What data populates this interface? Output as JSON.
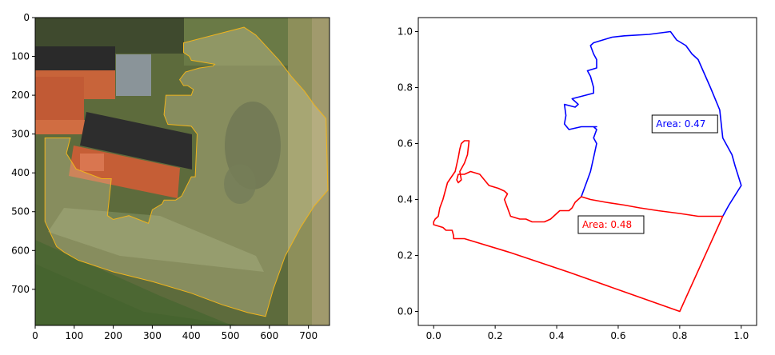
{
  "chart_data": [
    {
      "type": "image-with-polygon-overlay",
      "title": "",
      "xlabel": "",
      "ylabel": "",
      "xlim": [
        0,
        754
      ],
      "ylim": [
        793,
        0
      ],
      "x_ticks": [
        0,
        100,
        200,
        300,
        400,
        500,
        600,
        700
      ],
      "y_ticks": [
        0,
        100,
        200,
        300,
        400,
        500,
        600,
        700
      ],
      "overlay_color": "#f0b41c",
      "outline": [
        [
          380,
          65
        ],
        [
          535,
          25
        ],
        [
          565,
          45
        ],
        [
          625,
          110
        ],
        [
          655,
          150
        ],
        [
          690,
          190
        ],
        [
          715,
          225
        ],
        [
          745,
          260
        ],
        [
          750,
          445
        ],
        [
          715,
          485
        ],
        [
          680,
          540
        ],
        [
          640,
          615
        ],
        [
          610,
          700
        ],
        [
          590,
          770
        ],
        [
          545,
          760
        ],
        [
          480,
          740
        ],
        [
          400,
          710
        ],
        [
          300,
          680
        ],
        [
          200,
          655
        ],
        [
          110,
          625
        ],
        [
          75,
          605
        ],
        [
          55,
          590
        ],
        [
          25,
          525
        ],
        [
          25,
          310
        ],
        [
          90,
          310
        ],
        [
          80,
          350
        ],
        [
          105,
          390
        ],
        [
          170,
          415
        ],
        [
          195,
          415
        ],
        [
          185,
          510
        ],
        [
          200,
          520
        ],
        [
          240,
          510
        ],
        [
          265,
          520
        ],
        [
          290,
          530
        ],
        [
          300,
          495
        ],
        [
          325,
          480
        ],
        [
          330,
          470
        ],
        [
          360,
          470
        ],
        [
          375,
          460
        ],
        [
          390,
          430
        ],
        [
          400,
          410
        ],
        [
          410,
          410
        ],
        [
          415,
          300
        ],
        [
          400,
          280
        ],
        [
          340,
          275
        ],
        [
          330,
          250
        ],
        [
          335,
          200
        ],
        [
          400,
          200
        ],
        [
          405,
          185
        ],
        [
          390,
          175
        ],
        [
          380,
          175
        ],
        [
          370,
          160
        ],
        [
          385,
          140
        ],
        [
          420,
          130
        ],
        [
          455,
          125
        ],
        [
          460,
          120
        ],
        [
          400,
          110
        ],
        [
          395,
          100
        ],
        [
          380,
          90
        ]
      ]
    },
    {
      "type": "line",
      "title": "",
      "xlabel": "",
      "ylabel": "",
      "xlim": [
        -0.05,
        1.05
      ],
      "ylim": [
        -0.05,
        1.05
      ],
      "x_ticks": [
        0.0,
        0.2,
        0.4,
        0.6,
        0.8,
        1.0
      ],
      "y_ticks": [
        0.0,
        0.2,
        0.4,
        0.6,
        0.8,
        1.0
      ],
      "grid": false,
      "series": [
        {
          "color": "#0000ff",
          "x": [
            0.48,
            0.5,
            0.51,
            0.52,
            0.53,
            0.52,
            0.53,
            0.52,
            0.53,
            0.52,
            0.48,
            0.44,
            0.425,
            0.43,
            0.425,
            0.46,
            0.47,
            0.45,
            0.52,
            0.52,
            0.51,
            0.5,
            0.53,
            0.53,
            0.52,
            0.51,
            0.52,
            0.55,
            0.58,
            0.62,
            0.7,
            0.77,
            0.79,
            0.82,
            0.84,
            0.86,
            0.9,
            0.93,
            0.94,
            0.97,
            0.98,
            1.0,
            0.96,
            0.94
          ],
          "y": [
            0.41,
            0.47,
            0.5,
            0.55,
            0.6,
            0.62,
            0.65,
            0.66,
            0.66,
            0.66,
            0.66,
            0.65,
            0.67,
            0.7,
            0.74,
            0.73,
            0.74,
            0.76,
            0.78,
            0.8,
            0.84,
            0.86,
            0.87,
            0.9,
            0.92,
            0.95,
            0.96,
            0.97,
            0.98,
            0.985,
            0.99,
            1.0,
            0.97,
            0.95,
            0.92,
            0.9,
            0.8,
            0.72,
            0.62,
            0.56,
            0.52,
            0.45,
            0.38,
            0.34
          ]
        },
        {
          "color": "#ff0000",
          "x": [
            0.48,
            0.51,
            0.56,
            0.62,
            0.67,
            0.73,
            0.8,
            0.86,
            0.9,
            0.94,
            0.8,
            0.62,
            0.44,
            0.25,
            0.1,
            0.065,
            0.065,
            0.06,
            0.04,
            0.03,
            0.0,
            0.0,
            0.005,
            0.015,
            0.02,
            0.03,
            0.045,
            0.07,
            0.08,
            0.085,
            0.09,
            0.1,
            0.11,
            0.115,
            0.11,
            0.1,
            0.085,
            0.09,
            0.08,
            0.075,
            0.08,
            0.1,
            0.12,
            0.15,
            0.18,
            0.21,
            0.23,
            0.24,
            0.23,
            0.25,
            0.28,
            0.3,
            0.32,
            0.36,
            0.38,
            0.41,
            0.44,
            0.45,
            0.46,
            0.48
          ],
          "y": [
            0.41,
            0.4,
            0.39,
            0.38,
            0.37,
            0.36,
            0.35,
            0.34,
            0.34,
            0.34,
            0.0,
            0.07,
            0.14,
            0.21,
            0.26,
            0.26,
            0.27,
            0.29,
            0.29,
            0.3,
            0.31,
            0.32,
            0.33,
            0.34,
            0.37,
            0.4,
            0.46,
            0.5,
            0.55,
            0.58,
            0.6,
            0.61,
            0.61,
            0.61,
            0.56,
            0.53,
            0.5,
            0.47,
            0.46,
            0.47,
            0.49,
            0.49,
            0.5,
            0.49,
            0.45,
            0.44,
            0.43,
            0.42,
            0.4,
            0.34,
            0.33,
            0.33,
            0.32,
            0.32,
            0.33,
            0.36,
            0.36,
            0.37,
            0.39,
            0.41
          ]
        }
      ],
      "annotations": [
        {
          "text": "Area: 0.47",
          "x": 0.71,
          "y": 0.67,
          "color": "#0000ff"
        },
        {
          "text": "Area: 0.48",
          "x": 0.47,
          "y": 0.31,
          "color": "#ff0000"
        }
      ]
    }
  ]
}
